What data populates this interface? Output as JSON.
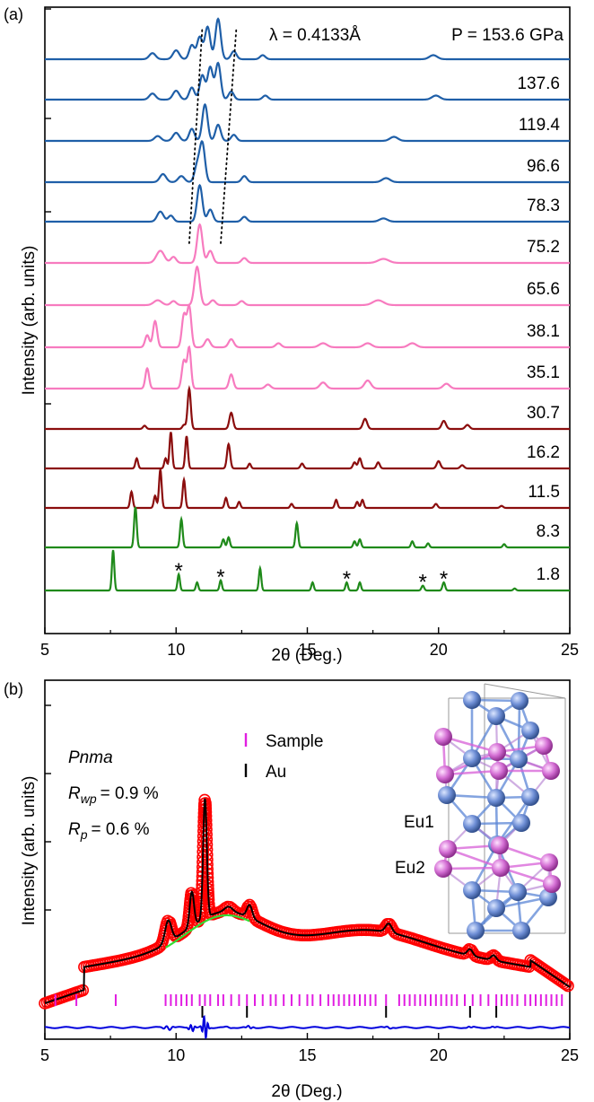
{
  "chart_data": [
    {
      "panel": "(a)",
      "type": "line",
      "xlabel": "2θ (Deg.)",
      "ylabel": "Intensity (arb. units)",
      "xlim": [
        5,
        25
      ],
      "xticks": [
        "5",
        "10",
        "15",
        "20",
        "25"
      ],
      "wavelength_label": "λ = 0.4133Å",
      "colors": {
        "blue": "#1f5fa8",
        "pink": "#f77bbf",
        "darkred": "#8b0d0d",
        "green": "#1f8a1a"
      },
      "series": [
        {
          "name": "P = 153.6 GPa",
          "color": "#1f5fa8",
          "peaks": [
            [
              9.1,
              0.15,
              0.12
            ],
            [
              10.0,
              0.22,
              0.12
            ],
            [
              10.6,
              0.35,
              0.1
            ],
            [
              10.9,
              0.55,
              0.1
            ],
            [
              11.2,
              0.8,
              0.1
            ],
            [
              11.6,
              1.0,
              0.1
            ],
            [
              12.2,
              0.2,
              0.1
            ],
            [
              13.3,
              0.1,
              0.1
            ],
            [
              19.8,
              0.1,
              0.15
            ]
          ]
        },
        {
          "name": "137.6",
          "color": "#1f5fa8",
          "peaks": [
            [
              9.1,
              0.15,
              0.12
            ],
            [
              10.0,
              0.22,
              0.12
            ],
            [
              10.6,
              0.3,
              0.1
            ],
            [
              11.0,
              0.6,
              0.1
            ],
            [
              11.3,
              0.8,
              0.1
            ],
            [
              11.6,
              0.9,
              0.1
            ],
            [
              12.1,
              0.2,
              0.1
            ],
            [
              13.4,
              0.1,
              0.1
            ],
            [
              19.9,
              0.1,
              0.15
            ]
          ]
        },
        {
          "name": "119.4",
          "color": "#1f5fa8",
          "peaks": [
            [
              9.3,
              0.12,
              0.12
            ],
            [
              10.0,
              0.2,
              0.12
            ],
            [
              10.6,
              0.3,
              0.1
            ],
            [
              11.1,
              0.9,
              0.1
            ],
            [
              11.6,
              0.4,
              0.1
            ],
            [
              12.2,
              0.15,
              0.1
            ],
            [
              18.3,
              0.1,
              0.15
            ]
          ]
        },
        {
          "name": "96.6",
          "color": "#1f5fa8",
          "peaks": [
            [
              9.5,
              0.2,
              0.12
            ],
            [
              10.2,
              0.15,
              0.12
            ],
            [
              10.8,
              0.4,
              0.1
            ],
            [
              11.0,
              0.95,
              0.1
            ],
            [
              12.6,
              0.15,
              0.1
            ],
            [
              18.0,
              0.1,
              0.15
            ]
          ]
        },
        {
          "name": "78.3",
          "color": "#1f5fa8",
          "peaks": [
            [
              9.4,
              0.25,
              0.12
            ],
            [
              9.8,
              0.15,
              0.1
            ],
            [
              10.9,
              0.9,
              0.1
            ],
            [
              11.3,
              0.3,
              0.1
            ],
            [
              12.6,
              0.12,
              0.1
            ],
            [
              17.9,
              0.08,
              0.15
            ]
          ]
        },
        {
          "name": "75.2",
          "color": "#f77bbf",
          "peaks": [
            [
              9.4,
              0.3,
              0.15
            ],
            [
              9.9,
              0.15,
              0.1
            ],
            [
              10.9,
              0.95,
              0.1
            ],
            [
              11.3,
              0.3,
              0.1
            ],
            [
              12.6,
              0.12,
              0.1
            ],
            [
              17.9,
              0.1,
              0.2
            ]
          ]
        },
        {
          "name": "65.6",
          "color": "#f77bbf",
          "peaks": [
            [
              9.3,
              0.12,
              0.15
            ],
            [
              9.9,
              0.1,
              0.1
            ],
            [
              10.8,
              0.95,
              0.1
            ],
            [
              11.4,
              0.12,
              0.1
            ],
            [
              12.5,
              0.1,
              0.1
            ],
            [
              17.7,
              0.12,
              0.2
            ]
          ]
        },
        {
          "name": "38.1",
          "color": "#f77bbf",
          "peaks": [
            [
              8.9,
              0.3,
              0.08
            ],
            [
              9.2,
              0.65,
              0.08
            ],
            [
              10.3,
              0.8,
              0.08
            ],
            [
              10.5,
              1.0,
              0.08
            ],
            [
              11.2,
              0.2,
              0.1
            ],
            [
              12.1,
              0.2,
              0.1
            ],
            [
              13.9,
              0.1,
              0.1
            ],
            [
              15.6,
              0.1,
              0.15
            ],
            [
              17.3,
              0.1,
              0.15
            ],
            [
              19.0,
              0.1,
              0.15
            ]
          ]
        },
        {
          "name": "35.1",
          "color": "#f77bbf",
          "peaks": [
            [
              8.9,
              0.5,
              0.07
            ],
            [
              10.3,
              0.7,
              0.08
            ],
            [
              10.5,
              1.0,
              0.07
            ],
            [
              12.1,
              0.35,
              0.08
            ],
            [
              13.5,
              0.1,
              0.1
            ],
            [
              15.6,
              0.15,
              0.12
            ],
            [
              17.3,
              0.2,
              0.12
            ],
            [
              20.3,
              0.12,
              0.12
            ]
          ]
        },
        {
          "name": "30.7",
          "color": "#8b0d0d",
          "peaks": [
            [
              8.8,
              0.08,
              0.06
            ],
            [
              10.3,
              0.1,
              0.06
            ],
            [
              10.5,
              1.0,
              0.06
            ],
            [
              12.1,
              0.4,
              0.07
            ],
            [
              17.2,
              0.25,
              0.08
            ],
            [
              20.2,
              0.2,
              0.08
            ],
            [
              21.1,
              0.1,
              0.08
            ]
          ]
        },
        {
          "name": "16.2",
          "color": "#8b0d0d",
          "peaks": [
            [
              8.5,
              0.25,
              0.05
            ],
            [
              9.6,
              0.25,
              0.05
            ],
            [
              9.8,
              0.9,
              0.05
            ],
            [
              10.4,
              0.8,
              0.05
            ],
            [
              12.0,
              0.6,
              0.06
            ],
            [
              12.8,
              0.12,
              0.05
            ],
            [
              14.8,
              0.12,
              0.06
            ],
            [
              16.8,
              0.15,
              0.06
            ],
            [
              17.0,
              0.25,
              0.06
            ],
            [
              17.7,
              0.15,
              0.06
            ],
            [
              20.0,
              0.18,
              0.07
            ],
            [
              20.9,
              0.08,
              0.07
            ]
          ]
        },
        {
          "name": "11.5",
          "color": "#8b0d0d",
          "peaks": [
            [
              8.3,
              0.4,
              0.05
            ],
            [
              9.2,
              0.3,
              0.05
            ],
            [
              9.4,
              0.95,
              0.05
            ],
            [
              10.3,
              0.7,
              0.05
            ],
            [
              11.9,
              0.25,
              0.05
            ],
            [
              12.4,
              0.15,
              0.05
            ],
            [
              14.4,
              0.1,
              0.05
            ],
            [
              16.1,
              0.2,
              0.05
            ],
            [
              16.9,
              0.15,
              0.05
            ],
            [
              17.1,
              0.2,
              0.05
            ],
            [
              19.9,
              0.1,
              0.06
            ],
            [
              22.4,
              0.05,
              0.06
            ]
          ]
        },
        {
          "name": "8.3",
          "color": "#1f8a1a",
          "peaks": [
            [
              8.45,
              1.0,
              0.05
            ],
            [
              10.2,
              0.7,
              0.05
            ],
            [
              11.8,
              0.2,
              0.05
            ],
            [
              12.0,
              0.25,
              0.05
            ],
            [
              14.6,
              0.6,
              0.05
            ],
            [
              16.8,
              0.15,
              0.05
            ],
            [
              17.0,
              0.2,
              0.05
            ],
            [
              19.0,
              0.15,
              0.05
            ],
            [
              19.6,
              0.1,
              0.05
            ],
            [
              22.5,
              0.08,
              0.05
            ]
          ]
        },
        {
          "name": "1.8",
          "color": "#1f8a1a",
          "peaks": [
            [
              7.6,
              1.0,
              0.045
            ],
            [
              10.1,
              0.4,
              0.045
            ],
            [
              10.8,
              0.2,
              0.045
            ],
            [
              11.7,
              0.25,
              0.045
            ],
            [
              13.2,
              0.55,
              0.045
            ],
            [
              15.2,
              0.2,
              0.045
            ],
            [
              16.5,
              0.2,
              0.045
            ],
            [
              17.0,
              0.2,
              0.045
            ],
            [
              19.4,
              0.12,
              0.05
            ],
            [
              20.2,
              0.2,
              0.05
            ],
            [
              22.9,
              0.05,
              0.05
            ]
          ]
        }
      ],
      "annotations": [
        {
          "text": "*",
          "x": 10.1
        },
        {
          "text": "*",
          "x": 11.7
        },
        {
          "text": "*",
          "x": 16.5
        },
        {
          "text": "*",
          "x": 19.4
        },
        {
          "text": "*",
          "x": 20.2
        }
      ],
      "guide_lines": [
        {
          "style": "dotted",
          "points": [
            [
              10.5,
              78.3
            ],
            [
              11.0,
              153.6
            ]
          ]
        },
        {
          "style": "dotted",
          "points": [
            [
              11.7,
              78.3
            ],
            [
              12.3,
              153.6
            ]
          ]
        }
      ]
    },
    {
      "panel": "(b)",
      "type": "line",
      "xlabel": "2θ (Deg.)",
      "ylabel": "Intensity (arb. units)",
      "xlim": [
        5,
        25
      ],
      "xticks": [
        "5",
        "10",
        "15",
        "20",
        "25"
      ],
      "space_group": "Pnma",
      "rwp_label": "= 0.9 %",
      "rp_label": "= 0.6 %",
      "legend": [
        {
          "name": "Sample",
          "color": "#e11de1"
        },
        {
          "name": "Au",
          "color": "#000000"
        }
      ],
      "site_labels": [
        "Eu1",
        "Eu2"
      ],
      "series": [
        {
          "name": "observed",
          "marker": "open-circle",
          "color": "#ff0000"
        },
        {
          "name": "calculated",
          "color": "#000000"
        },
        {
          "name": "background",
          "color": "#33dd33"
        },
        {
          "name": "difference",
          "color": "#0000dd"
        }
      ],
      "fit_peaks": [
        [
          9.7,
          0.35,
          0.12
        ],
        [
          10.6,
          0.55,
          0.08
        ],
        [
          11.1,
          1.9,
          0.07
        ],
        [
          12.0,
          0.08,
          0.15
        ],
        [
          12.8,
          0.2,
          0.1
        ],
        [
          18.1,
          0.14,
          0.12
        ],
        [
          21.2,
          0.1,
          0.1
        ],
        [
          22.1,
          0.08,
          0.1
        ]
      ],
      "sample_ticks": [
        5.4,
        6.2,
        7.7,
        9.6,
        9.8,
        10.0,
        10.2,
        10.4,
        10.6,
        10.9,
        11.1,
        11.3,
        11.6,
        11.8,
        12.1,
        12.4,
        12.7,
        13.0,
        13.3,
        13.6,
        13.8,
        14.1,
        14.4,
        14.7,
        15.0,
        15.2,
        15.5,
        15.8,
        16.0,
        16.2,
        16.4,
        16.6,
        16.8,
        17.0,
        17.2,
        17.4,
        17.6,
        18.0,
        18.5,
        18.7,
        18.9,
        19.1,
        19.3,
        19.5,
        19.7,
        19.9,
        20.1,
        20.3,
        20.5,
        20.7,
        21.0,
        21.3,
        21.6,
        21.9,
        22.2,
        22.4,
        22.6,
        22.8,
        23.0,
        23.3,
        23.5,
        23.7,
        23.9,
        24.1,
        24.3,
        24.5,
        24.7
      ],
      "au_ticks": [
        11.0,
        12.7,
        18.0,
        21.2,
        22.2
      ]
    }
  ]
}
